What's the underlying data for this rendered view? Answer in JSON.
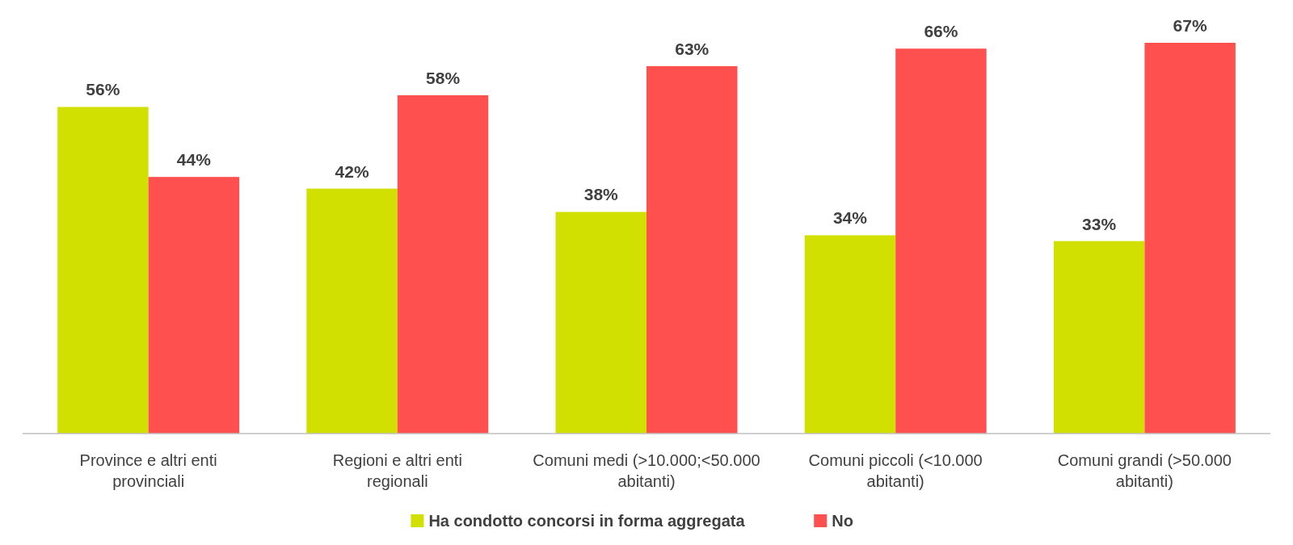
{
  "chart_data": {
    "type": "bar",
    "categories": [
      "Province e altri enti provinciali",
      "Regioni e altri enti regionali",
      "Comuni medi (>10.000;<50.000 abitanti)",
      "Comuni piccoli (<10.000 abitanti)",
      "Comuni grandi (>50.000 abitanti)"
    ],
    "series": [
      {
        "name": "Ha condotto concorsi in forma aggregata",
        "color": "#d2e000",
        "values": [
          56,
          42,
          38,
          34,
          33
        ],
        "value_labels": [
          "56%",
          "42%",
          "38%",
          "34%",
          "33%"
        ]
      },
      {
        "name": "No",
        "color": "#ff5050",
        "values": [
          44,
          58,
          63,
          66,
          67
        ],
        "value_labels": [
          "44%",
          "58%",
          "63%",
          "66%",
          "67%"
        ]
      }
    ],
    "legend": "bottom"
  }
}
